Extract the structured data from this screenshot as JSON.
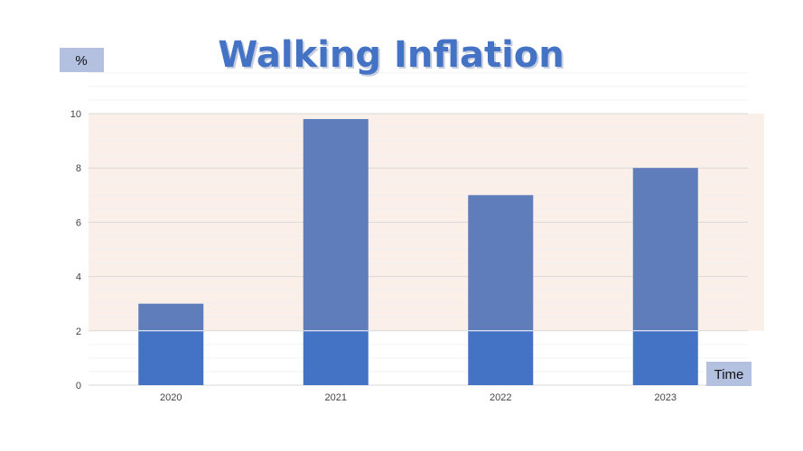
{
  "chart_data": {
    "type": "bar",
    "title": "Walking Inflation",
    "xlabel": "Time",
    "ylabel": "%",
    "categories": [
      "2020",
      "2021",
      "2022",
      "2023"
    ],
    "values": [
      3.0,
      9.8,
      7.0,
      8.0
    ],
    "ylim": [
      0,
      10
    ],
    "yticks": [
      "0",
      "2",
      "4",
      "6",
      "8",
      "10"
    ],
    "highlight_band": [
      2,
      10
    ],
    "grid": true,
    "legend": "none"
  },
  "colors": {
    "title": "#4472C4",
    "bar_upper": "#5F7DBB",
    "bar_lower": "#4472C4",
    "band": "#FBEFE9",
    "axis_label_box": "#B4C0E0",
    "grid": "#D9D9D9"
  }
}
